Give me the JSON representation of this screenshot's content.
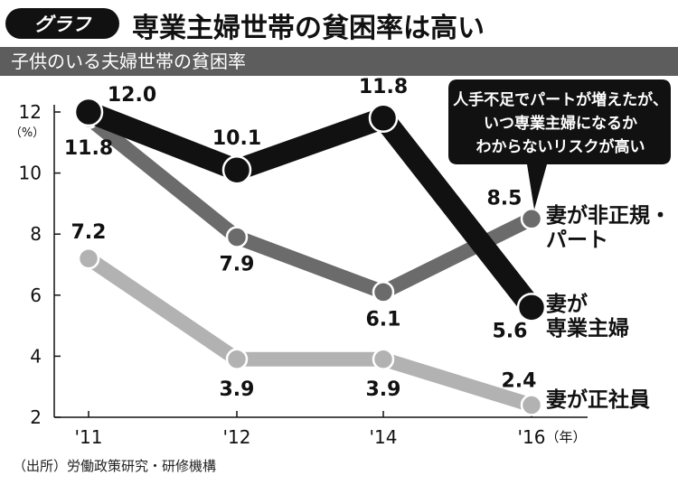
{
  "header": {
    "badge": "グラフ",
    "title": "専業主婦世帯の貧困率は高い"
  },
  "subtitle": "子供のいる夫婦世帯の貧困率",
  "source": "（出所）労働政策研究・研修機構",
  "annotation": [
    "人手不足でパートが増えたが、",
    "いつ専業主婦になるか",
    "わからないリスクが高い"
  ],
  "chart_data": {
    "type": "line",
    "title": "子供のいる夫婦世帯の貧困率",
    "categories": [
      "'11",
      "'12",
      "'14",
      "'16"
    ],
    "x_unit": "（年）",
    "y_unit": "（%）",
    "ylim": [
      2,
      12
    ],
    "yticks": [
      2,
      4,
      6,
      8,
      10,
      12
    ],
    "grid": false,
    "series": [
      {
        "name_lines": [
          "妻が",
          "専業主婦"
        ],
        "values": [
          12.0,
          10.1,
          11.8,
          5.6
        ],
        "value_labels": [
          "12.0",
          "10.1",
          "11.8",
          "5.6"
        ],
        "color": "#111111"
      },
      {
        "name_lines": [
          "妻が非正規・",
          "パート"
        ],
        "values": [
          11.8,
          7.9,
          6.1,
          8.5
        ],
        "value_labels": [
          "11.8",
          "7.9",
          "6.1",
          "8.5"
        ],
        "color": "#6b6b6b"
      },
      {
        "name_lines": [
          "妻が正社員"
        ],
        "values": [
          7.2,
          3.9,
          3.9,
          2.4
        ],
        "value_labels": [
          "7.2",
          "3.9",
          "3.9",
          "2.4"
        ],
        "color": "#b2b2b2"
      }
    ]
  }
}
